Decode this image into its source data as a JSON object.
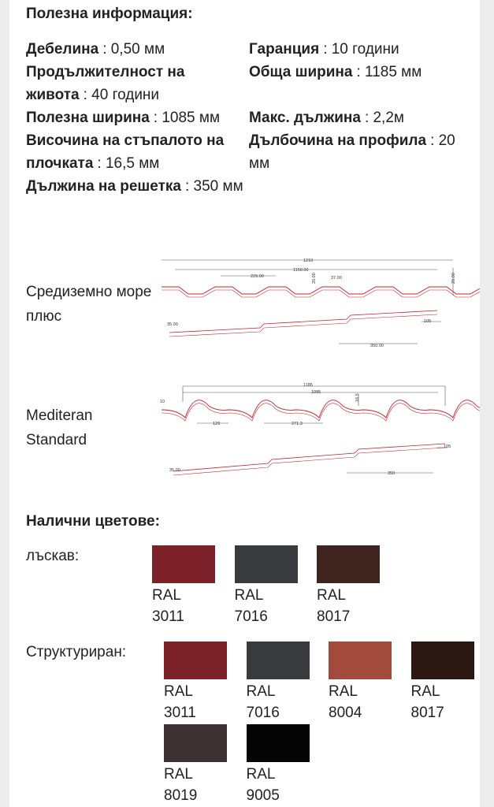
{
  "header": {
    "title": "Полезна информация:"
  },
  "specs": [
    {
      "label": "Дебелина",
      "value": ": 0,50 мм"
    },
    {
      "label": "Гаранция",
      "value": ": 10 години"
    },
    {
      "label": "Продължителност на живота",
      "value": ": 40 години"
    },
    {
      "label": "Обща ширина",
      "value": ": 1185 мм"
    },
    {
      "label": "Полезна ширина",
      "value": ": 1085 мм"
    },
    {
      "label": "Макс. дължина",
      "value": ": 2,2м"
    },
    {
      "label": "Височина на стъпалото на плочката",
      "value": ": 16,5 мм"
    },
    {
      "label": "Дълбочина на профила",
      "value": ": 20 мм"
    },
    {
      "label": "Дължина на решетка",
      "value": ": 350 мм"
    }
  ],
  "profiles": [
    {
      "name": "Средиземно море плюс",
      "dimensions": [
        "1210",
        "1150.00",
        "229.00",
        "20.00",
        "37.00",
        "20.00",
        "35.00",
        "105",
        "350.00"
      ]
    },
    {
      "name": "Mediteran Standard",
      "dimensions": [
        "1185",
        "1085",
        "16.5",
        "10",
        "129",
        "271.3",
        "35.00",
        "105",
        "350"
      ]
    }
  ],
  "colors": {
    "title": "Налични цветове:",
    "groups": [
      {
        "name": "лъскав:",
        "items": [
          {
            "label": "RAL 3011",
            "color": "#7c2029"
          },
          {
            "label": "RAL 7016",
            "color": "#3a3b3e"
          },
          {
            "label": "RAL 8017",
            "color": "#3d241e"
          }
        ]
      },
      {
        "name": "Структурирaн:",
        "items": [
          {
            "label": "RAL 3011",
            "color": "#7b2128"
          },
          {
            "label": "RAL 7016",
            "color": "#393a3d"
          },
          {
            "label": "RAL 8004",
            "color": "#a24a3c"
          },
          {
            "label": "RAL 8017",
            "color": "#2b1812"
          },
          {
            "label": "RAL 8019",
            "color": "#3d3231"
          },
          {
            "label": "RAL 9005",
            "color": "#050505"
          }
        ]
      }
    ]
  }
}
